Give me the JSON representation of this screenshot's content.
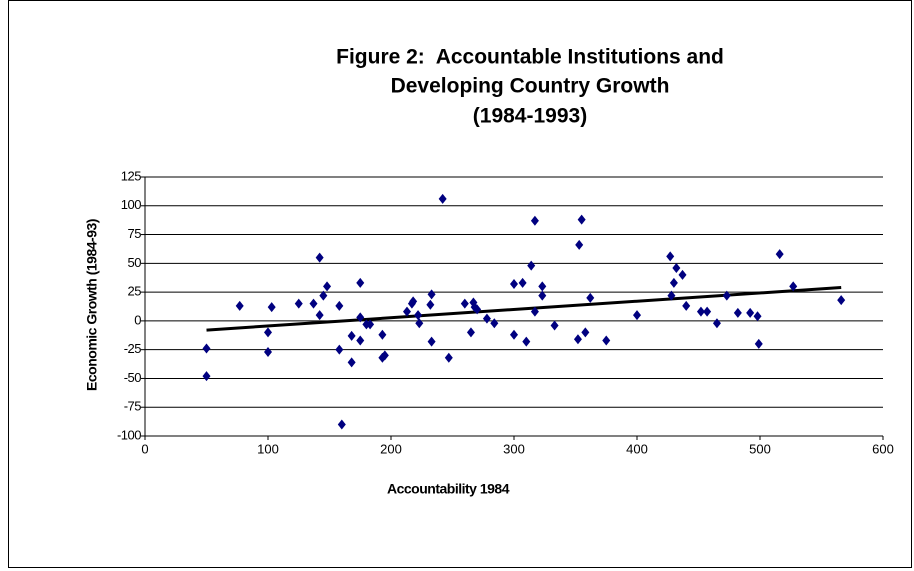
{
  "chart_data": {
    "type": "scatter",
    "title": [
      "Figure 2:  Accountable Institutions and",
      "Developing Country Growth",
      "(1984-1993)"
    ],
    "x_label": "Accountability 1984",
    "y_label": "Economic Growth (1984-93)",
    "color": "#000080",
    "x": [
      50,
      50,
      77,
      100,
      100,
      103,
      125,
      137,
      142,
      142,
      145,
      148,
      158,
      158,
      160,
      168,
      168,
      175,
      175,
      175,
      180,
      183,
      193,
      193,
      195,
      213,
      217,
      218,
      222,
      223,
      232,
      233,
      233,
      242,
      247,
      260,
      265,
      267,
      268,
      270,
      278,
      284,
      300,
      300,
      307,
      310,
      314,
      317,
      317,
      323,
      323,
      333,
      352,
      353,
      355,
      358,
      362,
      375,
      400,
      427,
      428,
      430,
      432,
      437,
      440,
      452,
      457,
      465,
      473,
      482,
      492,
      498,
      499,
      516,
      527,
      566
    ],
    "y": [
      -24,
      -48,
      13,
      -10,
      -27,
      12,
      15,
      15,
      55,
      5,
      22,
      30,
      13,
      -25,
      -90,
      -13,
      -36,
      33,
      3,
      -17,
      -3,
      -3,
      -12,
      -32,
      -30,
      8,
      15,
      17,
      5,
      -2,
      14,
      23,
      -18,
      106,
      -32,
      15,
      -10,
      16,
      12,
      10,
      2,
      -2,
      32,
      -12,
      33,
      -18,
      48,
      8,
      87,
      22,
      30,
      -4,
      -16,
      66,
      88,
      -10,
      20,
      -17,
      5,
      56,
      22,
      33,
      46,
      40,
      13,
      8,
      8,
      -2,
      22,
      7,
      7,
      4,
      -20,
      58,
      30,
      18
    ],
    "trendline": {
      "x": [
        50,
        566
      ],
      "y": [
        -8,
        29
      ],
      "color": "#000000"
    },
    "xlim": [
      0,
      600
    ],
    "xticks": [
      0,
      100,
      200,
      300,
      400,
      500,
      600
    ],
    "ylim": [
      -100,
      125
    ],
    "yticks": [
      -100,
      -75,
      -50,
      -25,
      0,
      25,
      50,
      75,
      100,
      125
    ],
    "grid": true
  }
}
